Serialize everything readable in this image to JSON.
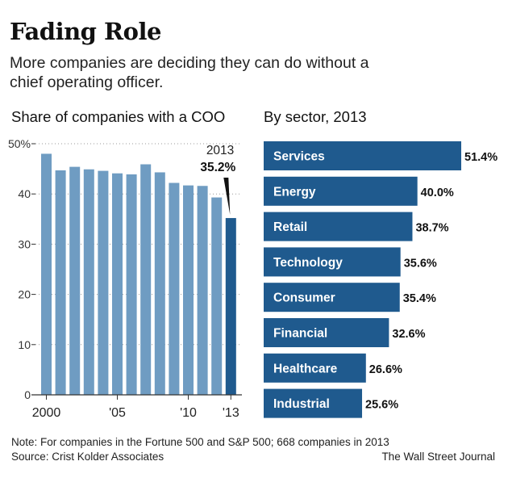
{
  "header": {
    "title": "Fading Role",
    "subtitle": "More companies are deciding they can do without a chief operating officer."
  },
  "colors": {
    "bar_left": "#6f9cc2",
    "bar_highlight": "#1f5a8e",
    "bar_right": "#1f5a8e",
    "axis": "#333333"
  },
  "chart_data": [
    {
      "type": "bar",
      "title": "Share of companies with a COO",
      "x": [
        2000,
        2001,
        2002,
        2003,
        2004,
        2005,
        2006,
        2007,
        2008,
        2009,
        2010,
        2011,
        2012,
        2013
      ],
      "values": [
        48.0,
        44.7,
        45.4,
        44.9,
        44.6,
        44.1,
        43.9,
        45.9,
        44.3,
        42.2,
        41.7,
        41.6,
        39.3,
        35.2
      ],
      "yticks": [
        0,
        10,
        20,
        30,
        40,
        50
      ],
      "ytick_labels": [
        "0",
        "10",
        "20",
        "30",
        "40",
        "50%"
      ],
      "xtick_labels": [
        "2000",
        "'05",
        "'10",
        "'13"
      ],
      "xtick_years": [
        2000,
        2005,
        2010,
        2013
      ],
      "ylim": [
        0,
        50
      ],
      "grid": true,
      "highlight": {
        "year_label": "2013",
        "value_label": "35.2%"
      }
    },
    {
      "type": "bar",
      "orientation": "horizontal",
      "title": "By sector, 2013",
      "categories": [
        "Services",
        "Energy",
        "Retail",
        "Technology",
        "Consumer",
        "Financial",
        "Healthcare",
        "Industrial"
      ],
      "values": [
        51.4,
        40.0,
        38.7,
        35.6,
        35.4,
        32.6,
        26.6,
        25.6
      ],
      "value_labels": [
        "51.4%",
        "40.0%",
        "38.7%",
        "35.6%",
        "35.4%",
        "32.6%",
        "26.6%",
        "25.6%"
      ],
      "xlim": [
        0,
        51.4
      ]
    }
  ],
  "footer": {
    "note": "Note: For companies in the Fortune 500 and S&P 500; 668 companies in 2013",
    "source": "Source: Crist Kolder Associates",
    "credit": "The Wall Street Journal"
  }
}
